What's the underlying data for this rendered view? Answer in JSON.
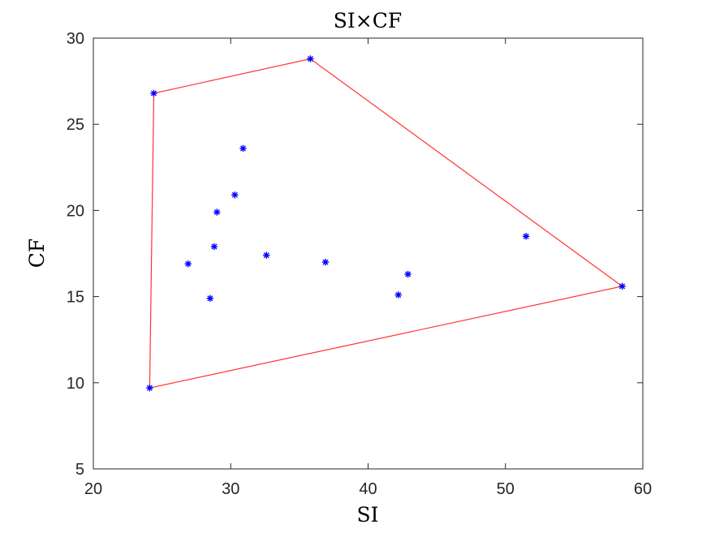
{
  "chart_data": {
    "type": "scatter",
    "title": "SI×CF",
    "xlabel": "SI",
    "ylabel": "CF",
    "xlim": [
      20,
      60
    ],
    "ylim": [
      5,
      30
    ],
    "xticks": [
      20,
      30,
      40,
      50,
      60
    ],
    "yticks": [
      5,
      10,
      15,
      20,
      25,
      30
    ],
    "grid": false,
    "legend": "none",
    "colors": {
      "points": "#0000ff",
      "hull": "#ff3333",
      "axes": "#262626"
    },
    "points": [
      {
        "x": 24.1,
        "y": 9.7
      },
      {
        "x": 24.4,
        "y": 26.8
      },
      {
        "x": 35.8,
        "y": 28.8
      },
      {
        "x": 58.5,
        "y": 15.6
      },
      {
        "x": 30.9,
        "y": 23.6
      },
      {
        "x": 30.3,
        "y": 20.9
      },
      {
        "x": 29.0,
        "y": 19.9
      },
      {
        "x": 28.8,
        "y": 17.9
      },
      {
        "x": 26.9,
        "y": 16.9
      },
      {
        "x": 32.6,
        "y": 17.4
      },
      {
        "x": 36.9,
        "y": 17.0
      },
      {
        "x": 28.5,
        "y": 14.9
      },
      {
        "x": 42.2,
        "y": 15.1
      },
      {
        "x": 42.9,
        "y": 16.3
      },
      {
        "x": 51.5,
        "y": 18.5
      }
    ],
    "hull": [
      {
        "x": 24.1,
        "y": 9.7
      },
      {
        "x": 24.4,
        "y": 26.8
      },
      {
        "x": 35.8,
        "y": 28.8
      },
      {
        "x": 58.5,
        "y": 15.6
      },
      {
        "x": 24.1,
        "y": 9.7
      }
    ]
  }
}
